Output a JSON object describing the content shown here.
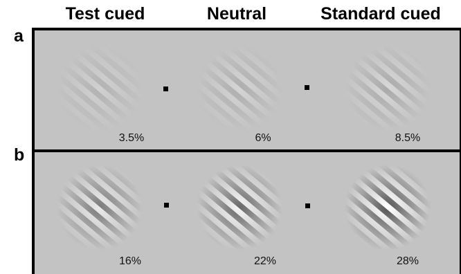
{
  "headers": {
    "test_cued": "Test cued",
    "neutral": "Neutral",
    "standard_cued": "Standard cued"
  },
  "rows": [
    {
      "label": "a",
      "contrasts": [
        "3.5%",
        "6%",
        "8.5%"
      ],
      "contrast_values": [
        3.5,
        6,
        8.5
      ]
    },
    {
      "label": "b",
      "contrasts": [
        "16%",
        "22%",
        "28%"
      ],
      "contrast_values": [
        16,
        22,
        28
      ]
    }
  ],
  "colors": {
    "background_gray": "#c3c3c3",
    "frame": "#000000",
    "fixation_point": "#000000"
  },
  "stimulus": "gabor-patch",
  "orientation": "tilted-right"
}
